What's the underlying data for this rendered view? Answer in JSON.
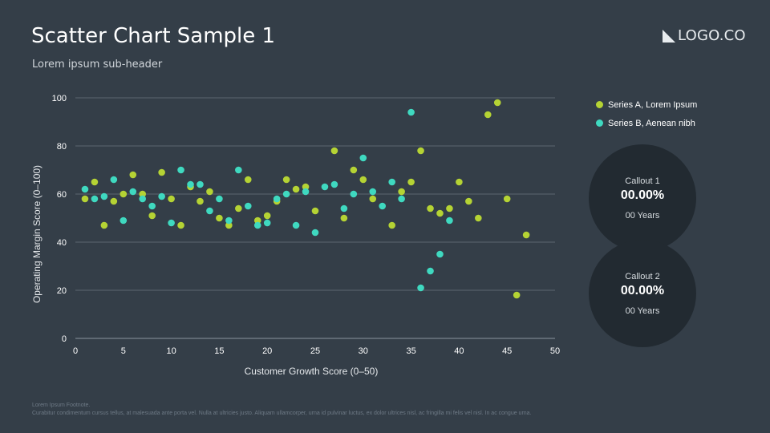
{
  "header": {
    "title": "Scatter Chart Sample 1",
    "subtitle": "Lorem ipsum sub-header"
  },
  "logo": {
    "text": "LOGO.CO",
    "icon": "logo-triangle-icon"
  },
  "legend": [
    {
      "label": "Series A, Lorem Ipsum",
      "color": "#b5d334"
    },
    {
      "label": "Series B, Aenean nibh",
      "color": "#3fd9c0"
    }
  ],
  "callouts": [
    {
      "label": "Callout 1",
      "value": "00.00%",
      "sub": "00 Years"
    },
    {
      "label": "Callout 2",
      "value": "00.00%",
      "sub": "00 Years"
    }
  ],
  "footnote": {
    "title": "Lorem Ipsum Footnote.",
    "text": "Curabitur condimentum cursus tellus, at malesuada ante porta vel. Nulla at ultricies justo. Aliquam ullamcorper, urna id pulvinar luctus, ex dolor ultrices nisl, ac fringilla mi felis vel nisl. In ac congue urna."
  },
  "chart_data": {
    "type": "scatter",
    "xlabel": "Customer Growth Score (0–50)",
    "ylabel": "Operating Margin Score (0–100)",
    "xlim": [
      0,
      50
    ],
    "ylim": [
      0,
      100
    ],
    "xticks": [
      0,
      5,
      10,
      15,
      20,
      25,
      30,
      35,
      40,
      45,
      50
    ],
    "yticks": [
      0,
      20,
      40,
      60,
      80,
      100
    ],
    "grid": "horizontal",
    "series": [
      {
        "name": "Series A, Lorem Ipsum",
        "color": "#b5d334",
        "points": [
          [
            1,
            58
          ],
          [
            2,
            65
          ],
          [
            3,
            47
          ],
          [
            4,
            57
          ],
          [
            5,
            60
          ],
          [
            6,
            68
          ],
          [
            7,
            60
          ],
          [
            8,
            51
          ],
          [
            9,
            69
          ],
          [
            10,
            58
          ],
          [
            11,
            47
          ],
          [
            12,
            63
          ],
          [
            13,
            57
          ],
          [
            14,
            61
          ],
          [
            15,
            50
          ],
          [
            16,
            47
          ],
          [
            17,
            54
          ],
          [
            18,
            66
          ],
          [
            19,
            49
          ],
          [
            20,
            51
          ],
          [
            21,
            57
          ],
          [
            22,
            66
          ],
          [
            23,
            62
          ],
          [
            24,
            63
          ],
          [
            25,
            53
          ],
          [
            27,
            78
          ],
          [
            28,
            50
          ],
          [
            29,
            70
          ],
          [
            30,
            66
          ],
          [
            31,
            58
          ],
          [
            33,
            47
          ],
          [
            34,
            61
          ],
          [
            35,
            65
          ],
          [
            36,
            78
          ],
          [
            37,
            54
          ],
          [
            38,
            52
          ],
          [
            39,
            54
          ],
          [
            40,
            65
          ],
          [
            41,
            57
          ],
          [
            42,
            50
          ],
          [
            43,
            93
          ],
          [
            44,
            98
          ],
          [
            45,
            58
          ],
          [
            46,
            18
          ],
          [
            47,
            43
          ]
        ]
      },
      {
        "name": "Series B, Aenean nibh",
        "color": "#3fd9c0",
        "points": [
          [
            1,
            62
          ],
          [
            2,
            58
          ],
          [
            3,
            59
          ],
          [
            4,
            66
          ],
          [
            5,
            49
          ],
          [
            6,
            61
          ],
          [
            7,
            58
          ],
          [
            8,
            55
          ],
          [
            9,
            59
          ],
          [
            10,
            48
          ],
          [
            11,
            70
          ],
          [
            12,
            64
          ],
          [
            13,
            64
          ],
          [
            14,
            53
          ],
          [
            15,
            58
          ],
          [
            16,
            49
          ],
          [
            17,
            70
          ],
          [
            18,
            55
          ],
          [
            19,
            47
          ],
          [
            20,
            48
          ],
          [
            21,
            58
          ],
          [
            22,
            60
          ],
          [
            23,
            47
          ],
          [
            24,
            61
          ],
          [
            25,
            44
          ],
          [
            26,
            63
          ],
          [
            27,
            64
          ],
          [
            28,
            54
          ],
          [
            29,
            60
          ],
          [
            30,
            75
          ],
          [
            31,
            61
          ],
          [
            32,
            55
          ],
          [
            33,
            65
          ],
          [
            34,
            58
          ],
          [
            35,
            94
          ],
          [
            36,
            21
          ],
          [
            37,
            28
          ],
          [
            38,
            35
          ],
          [
            39,
            49
          ]
        ]
      }
    ]
  }
}
